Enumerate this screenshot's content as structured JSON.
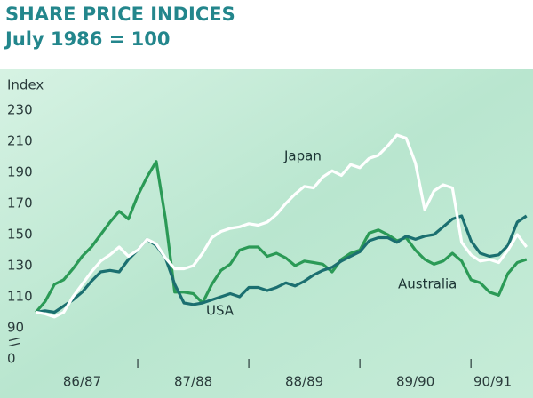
{
  "chart_data": {
    "type": "line",
    "title": "SHARE PRICE INDICES",
    "subtitle": "July 1986 = 100",
    "y_label": "Index",
    "categories": [
      "86/87",
      "87/88",
      "88/89",
      "89/90",
      "90/91"
    ],
    "x": [
      1,
      2,
      3,
      4,
      5,
      6,
      7,
      8,
      9,
      10,
      11,
      12,
      13,
      14,
      15,
      16,
      17,
      18,
      19,
      20,
      21,
      22,
      23,
      24,
      25,
      26,
      27,
      28,
      29,
      30,
      31,
      32,
      33,
      34,
      35,
      36,
      37,
      38,
      39,
      40,
      41,
      42,
      43,
      44,
      45,
      46,
      47,
      48,
      49,
      50,
      51,
      52,
      53,
      54
    ],
    "xlim": [
      0,
      55
    ],
    "ylim": [
      0,
      240
    ],
    "yticks": [
      0,
      90,
      110,
      130,
      150,
      170,
      190,
      210,
      230
    ],
    "y_break": [
      0,
      90
    ],
    "series": [
      {
        "name": "Japan",
        "color": "#ffffff",
        "values": [
          100,
          99,
          97,
          100,
          110,
          118,
          126,
          133,
          137,
          142,
          136,
          140,
          147,
          144,
          135,
          128,
          128,
          130,
          138,
          148,
          152,
          154,
          155,
          157,
          156,
          158,
          163,
          170,
          176,
          181,
          180,
          187,
          191,
          188,
          195,
          193,
          199,
          201,
          207,
          214,
          212,
          196,
          166,
          178,
          182,
          180,
          145,
          137,
          133,
          134,
          132,
          140,
          150,
          142
        ]
      },
      {
        "name": "USA",
        "color": "#1b6f70",
        "values": [
          100,
          101,
          100,
          104,
          108,
          113,
          120,
          126,
          127,
          126,
          134,
          140,
          147,
          143,
          135,
          118,
          106,
          105,
          106,
          108,
          110,
          112,
          110,
          116,
          116,
          114,
          116,
          119,
          117,
          120,
          124,
          127,
          129,
          133,
          136,
          139,
          146,
          148,
          148,
          145,
          149,
          147,
          149,
          150,
          155,
          160,
          162,
          146,
          138,
          136,
          137,
          143,
          158,
          162
        ]
      },
      {
        "name": "Australia",
        "color": "#2b9a56",
        "values": [
          100,
          107,
          118,
          121,
          128,
          136,
          142,
          150,
          158,
          165,
          160,
          175,
          187,
          197,
          160,
          113,
          113,
          112,
          106,
          118,
          127,
          131,
          140,
          142,
          142,
          136,
          138,
          135,
          130,
          133,
          132,
          131,
          126,
          134,
          138,
          140,
          151,
          153,
          150,
          146,
          148,
          140,
          134,
          131,
          133,
          138,
          133,
          121,
          119,
          113,
          111,
          125,
          132,
          134
        ]
      }
    ]
  }
}
